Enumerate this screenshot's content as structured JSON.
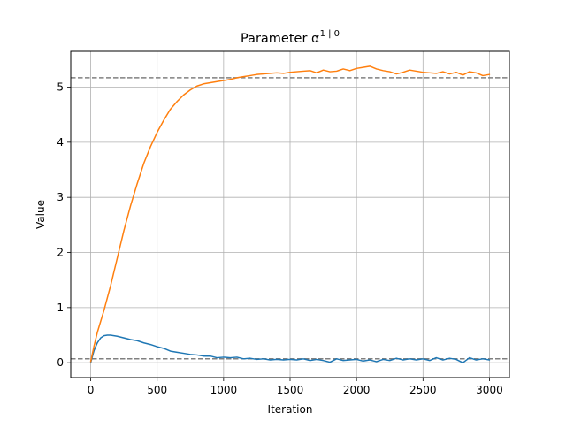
{
  "chart_data": {
    "type": "line",
    "title": "Parameter α",
    "title_superscript": "1 | 0",
    "xlabel": "Iteration",
    "ylabel": "Value",
    "xlim": [
      -150,
      3150
    ],
    "ylim": [
      -0.27,
      5.65
    ],
    "xticks": [
      0,
      500,
      1000,
      1500,
      2000,
      2500,
      3000
    ],
    "yticks": [
      0,
      1,
      2,
      3,
      4,
      5
    ],
    "grid": true,
    "legend": "none",
    "reference_lines": [
      {
        "y": 5.17,
        "style": "dashed",
        "color": "#808080"
      },
      {
        "y": 0.07,
        "style": "dashed",
        "color": "#808080"
      }
    ],
    "series": [
      {
        "color": "#1f77b4",
        "x": [
          0,
          25,
          50,
          75,
          100,
          125,
          150,
          175,
          200,
          250,
          300,
          350,
          400,
          450,
          500,
          550,
          600,
          650,
          700,
          750,
          800,
          850,
          900,
          950,
          1000,
          1050,
          1100,
          1150,
          1200,
          1250,
          1300,
          1350,
          1400,
          1450,
          1500,
          1550,
          1600,
          1650,
          1700,
          1750,
          1800,
          1850,
          1900,
          1950,
          2000,
          2050,
          2100,
          2150,
          2200,
          2250,
          2300,
          2350,
          2400,
          2450,
          2500,
          2550,
          2600,
          2650,
          2700,
          2750,
          2800,
          2850,
          2900,
          2950,
          3000
        ],
        "y": [
          0.0,
          0.22,
          0.36,
          0.45,
          0.49,
          0.5,
          0.5,
          0.49,
          0.48,
          0.45,
          0.42,
          0.4,
          0.36,
          0.33,
          0.29,
          0.26,
          0.21,
          0.19,
          0.17,
          0.15,
          0.14,
          0.12,
          0.12,
          0.09,
          0.1,
          0.09,
          0.1,
          0.07,
          0.08,
          0.06,
          0.07,
          0.05,
          0.06,
          0.05,
          0.06,
          0.05,
          0.07,
          0.04,
          0.06,
          0.04,
          0.01,
          0.07,
          0.04,
          0.05,
          0.06,
          0.03,
          0.05,
          0.02,
          0.06,
          0.04,
          0.08,
          0.05,
          0.07,
          0.05,
          0.07,
          0.04,
          0.09,
          0.05,
          0.08,
          0.06,
          0.0,
          0.09,
          0.05,
          0.07,
          0.05
        ]
      },
      {
        "color": "#ff7f0e",
        "x": [
          0,
          25,
          50,
          100,
          150,
          200,
          250,
          300,
          350,
          400,
          450,
          500,
          550,
          600,
          650,
          700,
          750,
          800,
          850,
          900,
          950,
          1000,
          1050,
          1100,
          1150,
          1200,
          1250,
          1300,
          1350,
          1400,
          1450,
          1500,
          1550,
          1600,
          1650,
          1700,
          1750,
          1800,
          1850,
          1900,
          1950,
          2000,
          2050,
          2100,
          2150,
          2200,
          2250,
          2300,
          2350,
          2400,
          2450,
          2500,
          2550,
          2600,
          2650,
          2700,
          2750,
          2800,
          2850,
          2900,
          2950,
          3000
        ],
        "y": [
          0.02,
          0.3,
          0.55,
          0.95,
          1.4,
          1.9,
          2.4,
          2.85,
          3.25,
          3.62,
          3.92,
          4.18,
          4.4,
          4.6,
          4.74,
          4.86,
          4.95,
          5.02,
          5.06,
          5.08,
          5.1,
          5.12,
          5.14,
          5.17,
          5.19,
          5.21,
          5.23,
          5.24,
          5.25,
          5.26,
          5.25,
          5.27,
          5.28,
          5.29,
          5.3,
          5.26,
          5.31,
          5.28,
          5.29,
          5.33,
          5.3,
          5.34,
          5.36,
          5.38,
          5.33,
          5.3,
          5.28,
          5.24,
          5.27,
          5.31,
          5.29,
          5.27,
          5.26,
          5.25,
          5.28,
          5.24,
          5.27,
          5.22,
          5.28,
          5.26,
          5.21,
          5.23
        ]
      }
    ]
  }
}
